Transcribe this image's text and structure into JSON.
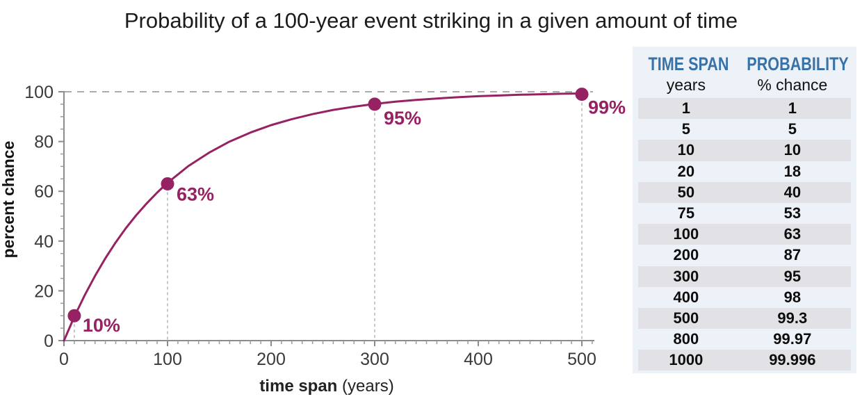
{
  "title": "Probability of a 100-year event striking in a given amount of time",
  "chart_data": {
    "type": "line",
    "title": "Probability of a 100-year event striking in a given amount of time",
    "xlabel": "time span",
    "xlabel_unit": "(years)",
    "ylabel": "percent chance",
    "xlim": [
      0,
      512
    ],
    "ylim": [
      0,
      100
    ],
    "x_major_ticks": [
      0,
      100,
      200,
      300,
      400,
      500
    ],
    "x_minor_step": 10,
    "y_major_ticks": [
      0,
      20,
      40,
      60,
      80,
      100
    ],
    "y_minor_step": 5,
    "grid": "dashed top line at y=100 only; dashed vertical drop lines at annotated points",
    "legend": "none",
    "line_color": "#962163",
    "axis_color": "#8c8c8c",
    "tick_label_color": "#3a3a3a",
    "dashed_line_color": "#ababab",
    "curve": {
      "x": [
        0,
        10,
        20,
        30,
        40,
        50,
        60,
        70,
        80,
        90,
        100,
        120,
        140,
        160,
        180,
        200,
        220,
        240,
        260,
        280,
        300,
        320,
        340,
        360,
        380,
        400,
        420,
        440,
        460,
        480,
        500
      ],
      "y": [
        0,
        9.6,
        18.2,
        26.0,
        33.1,
        39.5,
        45.3,
        50.5,
        55.2,
        59.5,
        63.4,
        70.1,
        75.5,
        80.0,
        83.6,
        86.6,
        89.0,
        91.0,
        92.7,
        94.0,
        95.1,
        96.0,
        96.7,
        97.3,
        97.8,
        98.2,
        98.5,
        98.8,
        99.0,
        99.2,
        99.3
      ]
    },
    "annotated_points": [
      {
        "x": 10,
        "y": 10,
        "label": "10%"
      },
      {
        "x": 100,
        "y": 63,
        "label": "63%"
      },
      {
        "x": 300,
        "y": 95,
        "label": "95%"
      },
      {
        "x": 500,
        "y": 99,
        "label": "99%"
      }
    ]
  },
  "table": {
    "header": [
      "TIME SPAN",
      "PROBABILITY"
    ],
    "subheader": [
      "years",
      "% chance"
    ],
    "rows": [
      [
        "1",
        "1"
      ],
      [
        "5",
        "5"
      ],
      [
        "10",
        "10"
      ],
      [
        "20",
        "18"
      ],
      [
        "50",
        "40"
      ],
      [
        "75",
        "53"
      ],
      [
        "100",
        "63"
      ],
      [
        "200",
        "87"
      ],
      [
        "300",
        "95"
      ],
      [
        "400",
        "98"
      ],
      [
        "500",
        "99.3"
      ],
      [
        "800",
        "99.97"
      ],
      [
        "1000",
        "99.996"
      ]
    ],
    "colors": {
      "header_text": "#3872a6",
      "panel_bg": "#edf2f9",
      "stripe": "#e2e2e6"
    }
  }
}
